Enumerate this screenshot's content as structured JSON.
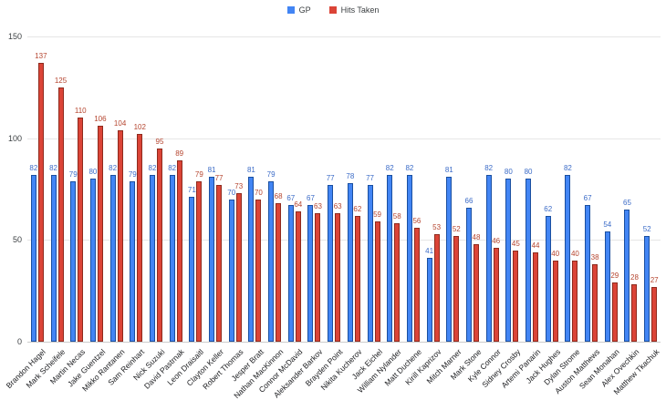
{
  "legend": {
    "items": [
      {
        "label": "GP",
        "color": "#4285F4"
      },
      {
        "label": "Hits Taken",
        "color": "#DB4437"
      }
    ]
  },
  "axes": {
    "yticks": [
      0,
      50,
      100,
      150
    ]
  },
  "chart_data": {
    "type": "bar",
    "title": "",
    "xlabel": "",
    "ylabel": "",
    "ylim": [
      0,
      150
    ],
    "grid": true,
    "legend_position": "top",
    "value_labels": true,
    "categories": [
      "Brandon Hagel",
      "Mark Scheifele",
      "Martin Necas",
      "Jake Guentzel",
      "Mikko Rantanen",
      "Sam Reinhart",
      "Nick Suzuki",
      "David Pastrnak",
      "Leon Draisaitl",
      "Clayton Keller",
      "Robert Thomas",
      "Jesper Bratt",
      "Nathan MacKinnon",
      "Connor McDavid",
      "Aleksander Barkov",
      "Brayden Point",
      "Nikita Kucherov",
      "Jack Eichel",
      "William Nylander",
      "Matt Duchene",
      "Kirill Kaprizov",
      "Mitch Marner",
      "Mark Stone",
      "Kyle Connor",
      "Sidney Crosby",
      "Artemi Panarin",
      "Jack Hughes",
      "Dylan Strome",
      "Auston Matthews",
      "Sean Monahan",
      "Alex Ovechkin",
      "Matthew Tkachuk"
    ],
    "series": [
      {
        "name": "GP",
        "color": "#4285F4",
        "border_color": "#1A4FA0",
        "label_color": "#3B6BC7",
        "values": [
          82,
          82,
          79,
          80,
          82,
          79,
          82,
          82,
          71,
          81,
          70,
          81,
          79,
          67,
          67,
          77,
          78,
          77,
          82,
          82,
          41,
          81,
          66,
          82,
          80,
          80,
          62,
          82,
          67,
          54,
          65,
          52
        ]
      },
      {
        "name": "Hits Taken",
        "color": "#DB4437",
        "border_color": "#8F2A1D",
        "label_color": "#B5452F",
        "values": [
          137,
          125,
          110,
          106,
          104,
          102,
          95,
          89,
          79,
          77,
          73,
          70,
          68,
          64,
          63,
          63,
          62,
          59,
          58,
          56,
          53,
          52,
          48,
          46,
          45,
          44,
          40,
          40,
          38,
          29,
          28,
          27
        ]
      }
    ]
  }
}
